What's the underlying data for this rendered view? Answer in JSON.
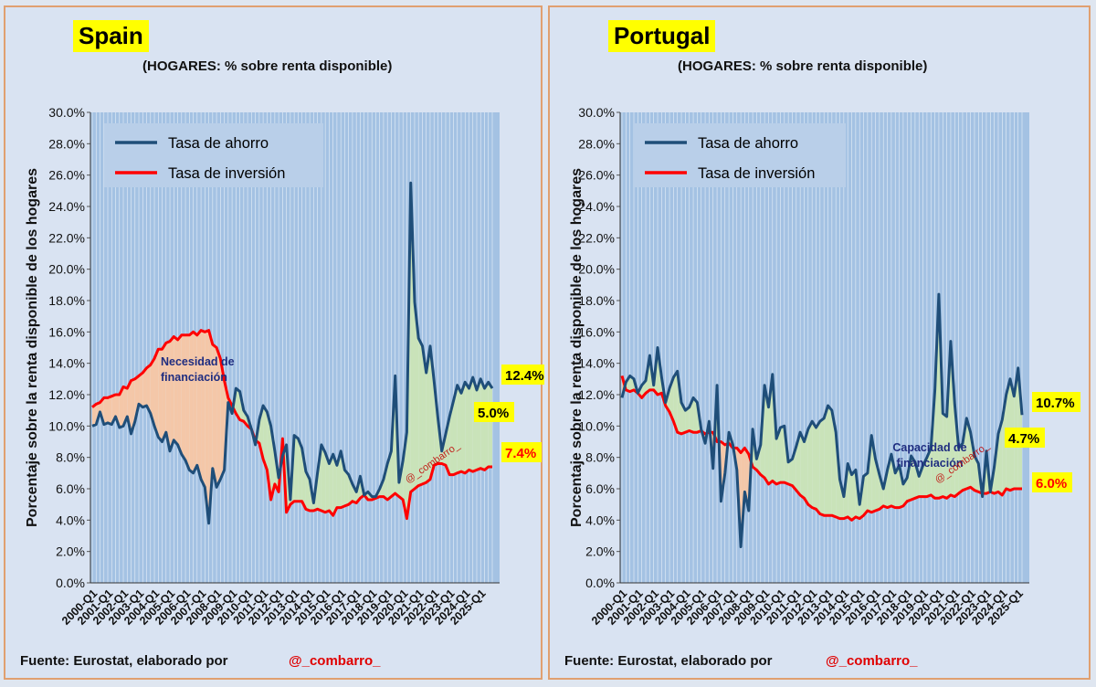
{
  "source_label": "Fuente: Eurostat, elaborado por",
  "handle": "@_combarro_",
  "colors": {
    "saving": "#1f4e79",
    "investment": "#ff0000",
    "plot_bg": "#a4c2e3",
    "need_fill": "#f4c7a8",
    "capacity_fill": "#c9e3b9",
    "highlight": "#ffff00"
  },
  "chart_data": [
    {
      "type": "line",
      "country": "Spain",
      "subtitle": "(HOGARES: % sobre renta disponible)",
      "ylabel": "Porcentaje sobre la renta disponible de los hogares",
      "ylim": [
        0,
        30
      ],
      "yticks": [
        "0.0%",
        "2.0%",
        "4.0%",
        "6.0%",
        "8.0%",
        "10.0%",
        "12.0%",
        "14.0%",
        "16.0%",
        "18.0%",
        "20.0%",
        "22.0%",
        "24.0%",
        "26.0%",
        "28.0%",
        "30.0%"
      ],
      "xticks": [
        "2000-Q1",
        "2001-Q1",
        "2002-Q1",
        "2003-Q1",
        "2004-Q1",
        "2005-Q1",
        "2006-Q1",
        "2007-Q1",
        "2008-Q1",
        "2009-Q1",
        "2010-Q1",
        "2011-Q1",
        "2012-Q1",
        "2013-Q1",
        "2014-Q1",
        "2015-Q1",
        "2016-Q1",
        "2017-Q1",
        "2018-Q1",
        "2019-Q1",
        "2020-Q1",
        "2021-Q1",
        "2022-Q1",
        "2023-Q1",
        "2024-Q1",
        "2025-Q1"
      ],
      "legend": [
        "Tasa de ahorro",
        "Tasa de inversión"
      ],
      "series": [
        {
          "name": "Tasa de ahorro",
          "values": [
            10.0,
            10.1,
            10.9,
            10.1,
            10.2,
            10.1,
            10.6,
            9.9,
            10.0,
            10.6,
            9.5,
            10.3,
            11.4,
            11.2,
            11.3,
            10.8,
            10.0,
            9.3,
            9.0,
            9.6,
            8.4,
            9.1,
            8.8,
            8.2,
            7.8,
            7.2,
            7.0,
            7.5,
            6.6,
            6.1,
            3.8,
            7.3,
            6.1,
            6.6,
            7.2,
            11.5,
            10.8,
            12.4,
            12.2,
            11.0,
            10.6,
            9.8,
            8.8,
            10.4,
            11.3,
            10.9,
            10.0,
            8.4,
            6.7,
            8.1,
            8.8,
            5.3,
            9.4,
            9.2,
            8.6,
            7.1,
            6.6,
            5.1,
            7.0,
            8.8,
            8.3,
            7.6,
            8.2,
            7.5,
            8.4,
            7.2,
            6.9,
            6.3,
            5.8,
            6.8,
            5.6,
            5.8,
            5.5,
            5.5,
            6.0,
            6.6,
            7.6,
            8.4,
            13.2,
            6.4,
            7.8,
            9.6,
            25.5,
            17.9,
            15.6,
            15.1,
            13.4,
            15.1,
            12.9,
            10.5,
            8.4,
            9.5,
            10.6,
            11.6,
            12.6,
            12.1,
            12.8,
            12.4,
            13.1,
            12.3,
            13.0,
            12.4,
            12.8,
            12.4
          ],
          "label": "12.4%"
        },
        {
          "name": "Tasa de inversión",
          "values": [
            11.2,
            11.4,
            11.5,
            11.8,
            11.8,
            11.9,
            12.0,
            12.0,
            12.5,
            12.4,
            12.9,
            13.0,
            13.2,
            13.4,
            13.7,
            13.9,
            14.3,
            14.9,
            14.9,
            15.3,
            15.4,
            15.7,
            15.5,
            15.8,
            15.8,
            15.8,
            16.0,
            15.8,
            16.1,
            16.0,
            16.1,
            15.2,
            15.0,
            14.3,
            12.9,
            11.8,
            11.3,
            10.8,
            10.4,
            10.3,
            10.0,
            9.8,
            9.1,
            8.9,
            7.9,
            7.2,
            5.3,
            6.3,
            5.8,
            9.2,
            4.5,
            5.0,
            5.2,
            5.2,
            5.2,
            4.7,
            4.6,
            4.6,
            4.7,
            4.6,
            4.5,
            4.6,
            4.3,
            4.8,
            4.8,
            4.9,
            5.0,
            5.2,
            5.1,
            5.4,
            5.6,
            5.3,
            5.3,
            5.4,
            5.5,
            5.5,
            5.3,
            5.5,
            5.7,
            5.5,
            5.3,
            4.1,
            5.8,
            6.0,
            6.2,
            6.3,
            6.4,
            6.6,
            7.5,
            7.6,
            7.6,
            7.5,
            6.9,
            6.9,
            7.0,
            7.1,
            7.0,
            7.2,
            7.1,
            7.2,
            7.3,
            7.2,
            7.4,
            7.4
          ],
          "label": "7.4%"
        }
      ],
      "gap_label": "5.0%",
      "annotation": "Necesidad de financiación"
    },
    {
      "type": "line",
      "country": "Portugal",
      "subtitle": "(HOGARES: % sobre renta disponible)",
      "ylabel": "Porcentaje sobre la renta disponible de los hogares",
      "ylim": [
        0,
        30
      ],
      "yticks": [
        "0.0%",
        "2.0%",
        "4.0%",
        "6.0%",
        "8.0%",
        "10.0%",
        "12.0%",
        "14.0%",
        "16.0%",
        "18.0%",
        "20.0%",
        "22.0%",
        "24.0%",
        "26.0%",
        "28.0%",
        "30.0%"
      ],
      "xticks": [
        "2000-Q1",
        "2001-Q1",
        "2002-Q1",
        "2003-Q1",
        "2004-Q1",
        "2005-Q1",
        "2006-Q1",
        "2007-Q1",
        "2008-Q1",
        "2009-Q1",
        "2010-Q1",
        "2011-Q1",
        "2012-Q1",
        "2013-Q1",
        "2014-Q1",
        "2015-Q1",
        "2016-Q1",
        "2017-Q1",
        "2018-Q1",
        "2019-Q1",
        "2020-Q1",
        "2021-Q1",
        "2022-Q1",
        "2023-Q1",
        "2024-Q1",
        "2025-Q1"
      ],
      "legend": [
        "Tasa de ahorro",
        "Tasa de inversión"
      ],
      "series": [
        {
          "name": "Tasa de ahorro",
          "values": [
            11.8,
            12.8,
            13.2,
            13.0,
            12.1,
            12.6,
            12.9,
            14.5,
            12.6,
            15.0,
            13.1,
            11.5,
            12.4,
            13.1,
            13.5,
            11.5,
            11.0,
            11.2,
            11.8,
            11.5,
            9.8,
            8.9,
            10.3,
            7.3,
            12.6,
            5.2,
            7.0,
            9.6,
            8.8,
            7.2,
            2.3,
            5.8,
            4.6,
            9.8,
            7.9,
            8.8,
            12.6,
            11.2,
            13.3,
            9.2,
            9.9,
            10.0,
            7.7,
            7.9,
            8.7,
            9.6,
            9.0,
            9.8,
            10.3,
            9.9,
            10.3,
            10.5,
            11.3,
            11.0,
            9.6,
            6.6,
            5.5,
            7.6,
            6.9,
            7.2,
            5.0,
            6.8,
            7.0,
            9.4,
            7.9,
            6.9,
            6.0,
            7.2,
            8.2,
            7.0,
            7.5,
            6.3,
            6.7,
            8.1,
            7.7,
            6.8,
            7.5,
            8.0,
            8.6,
            12.3,
            18.4,
            10.8,
            10.6,
            15.4,
            11.4,
            8.6,
            8.9,
            10.5,
            9.6,
            8.1,
            7.6,
            5.5,
            8.4,
            5.8,
            7.4,
            9.5,
            10.4,
            12.0,
            13.0,
            11.9,
            13.7,
            10.7
          ],
          "label": "10.7%"
        },
        {
          "name": "Tasa de inversión",
          "values": [
            13.2,
            12.3,
            12.2,
            12.3,
            12.1,
            11.8,
            12.1,
            12.3,
            12.3,
            12.0,
            12.1,
            11.3,
            10.9,
            10.3,
            9.6,
            9.5,
            9.6,
            9.7,
            9.6,
            9.6,
            9.7,
            9.5,
            9.6,
            9.6,
            9.0,
            9.0,
            8.8,
            8.9,
            8.6,
            8.6,
            8.3,
            8.6,
            8.2,
            7.4,
            7.2,
            6.9,
            6.7,
            6.3,
            6.5,
            6.3,
            6.4,
            6.4,
            6.3,
            6.2,
            5.9,
            5.6,
            5.4,
            5.0,
            4.8,
            4.7,
            4.4,
            4.3,
            4.3,
            4.3,
            4.2,
            4.1,
            4.1,
            4.2,
            4.0,
            4.2,
            4.1,
            4.3,
            4.6,
            4.5,
            4.6,
            4.7,
            4.9,
            4.8,
            4.9,
            4.8,
            4.8,
            4.9,
            5.2,
            5.3,
            5.4,
            5.5,
            5.5,
            5.5,
            5.6,
            5.4,
            5.4,
            5.5,
            5.4,
            5.6,
            5.5,
            5.7,
            5.9,
            6.0,
            6.1,
            5.9,
            5.8,
            5.7,
            5.7,
            5.8,
            5.7,
            5.8,
            5.6,
            6.0,
            5.9,
            6.0,
            6.0,
            6.0
          ],
          "label": "6.0%"
        }
      ],
      "gap_label": "4.7%",
      "annotation": "Capacidad de financiación"
    }
  ]
}
